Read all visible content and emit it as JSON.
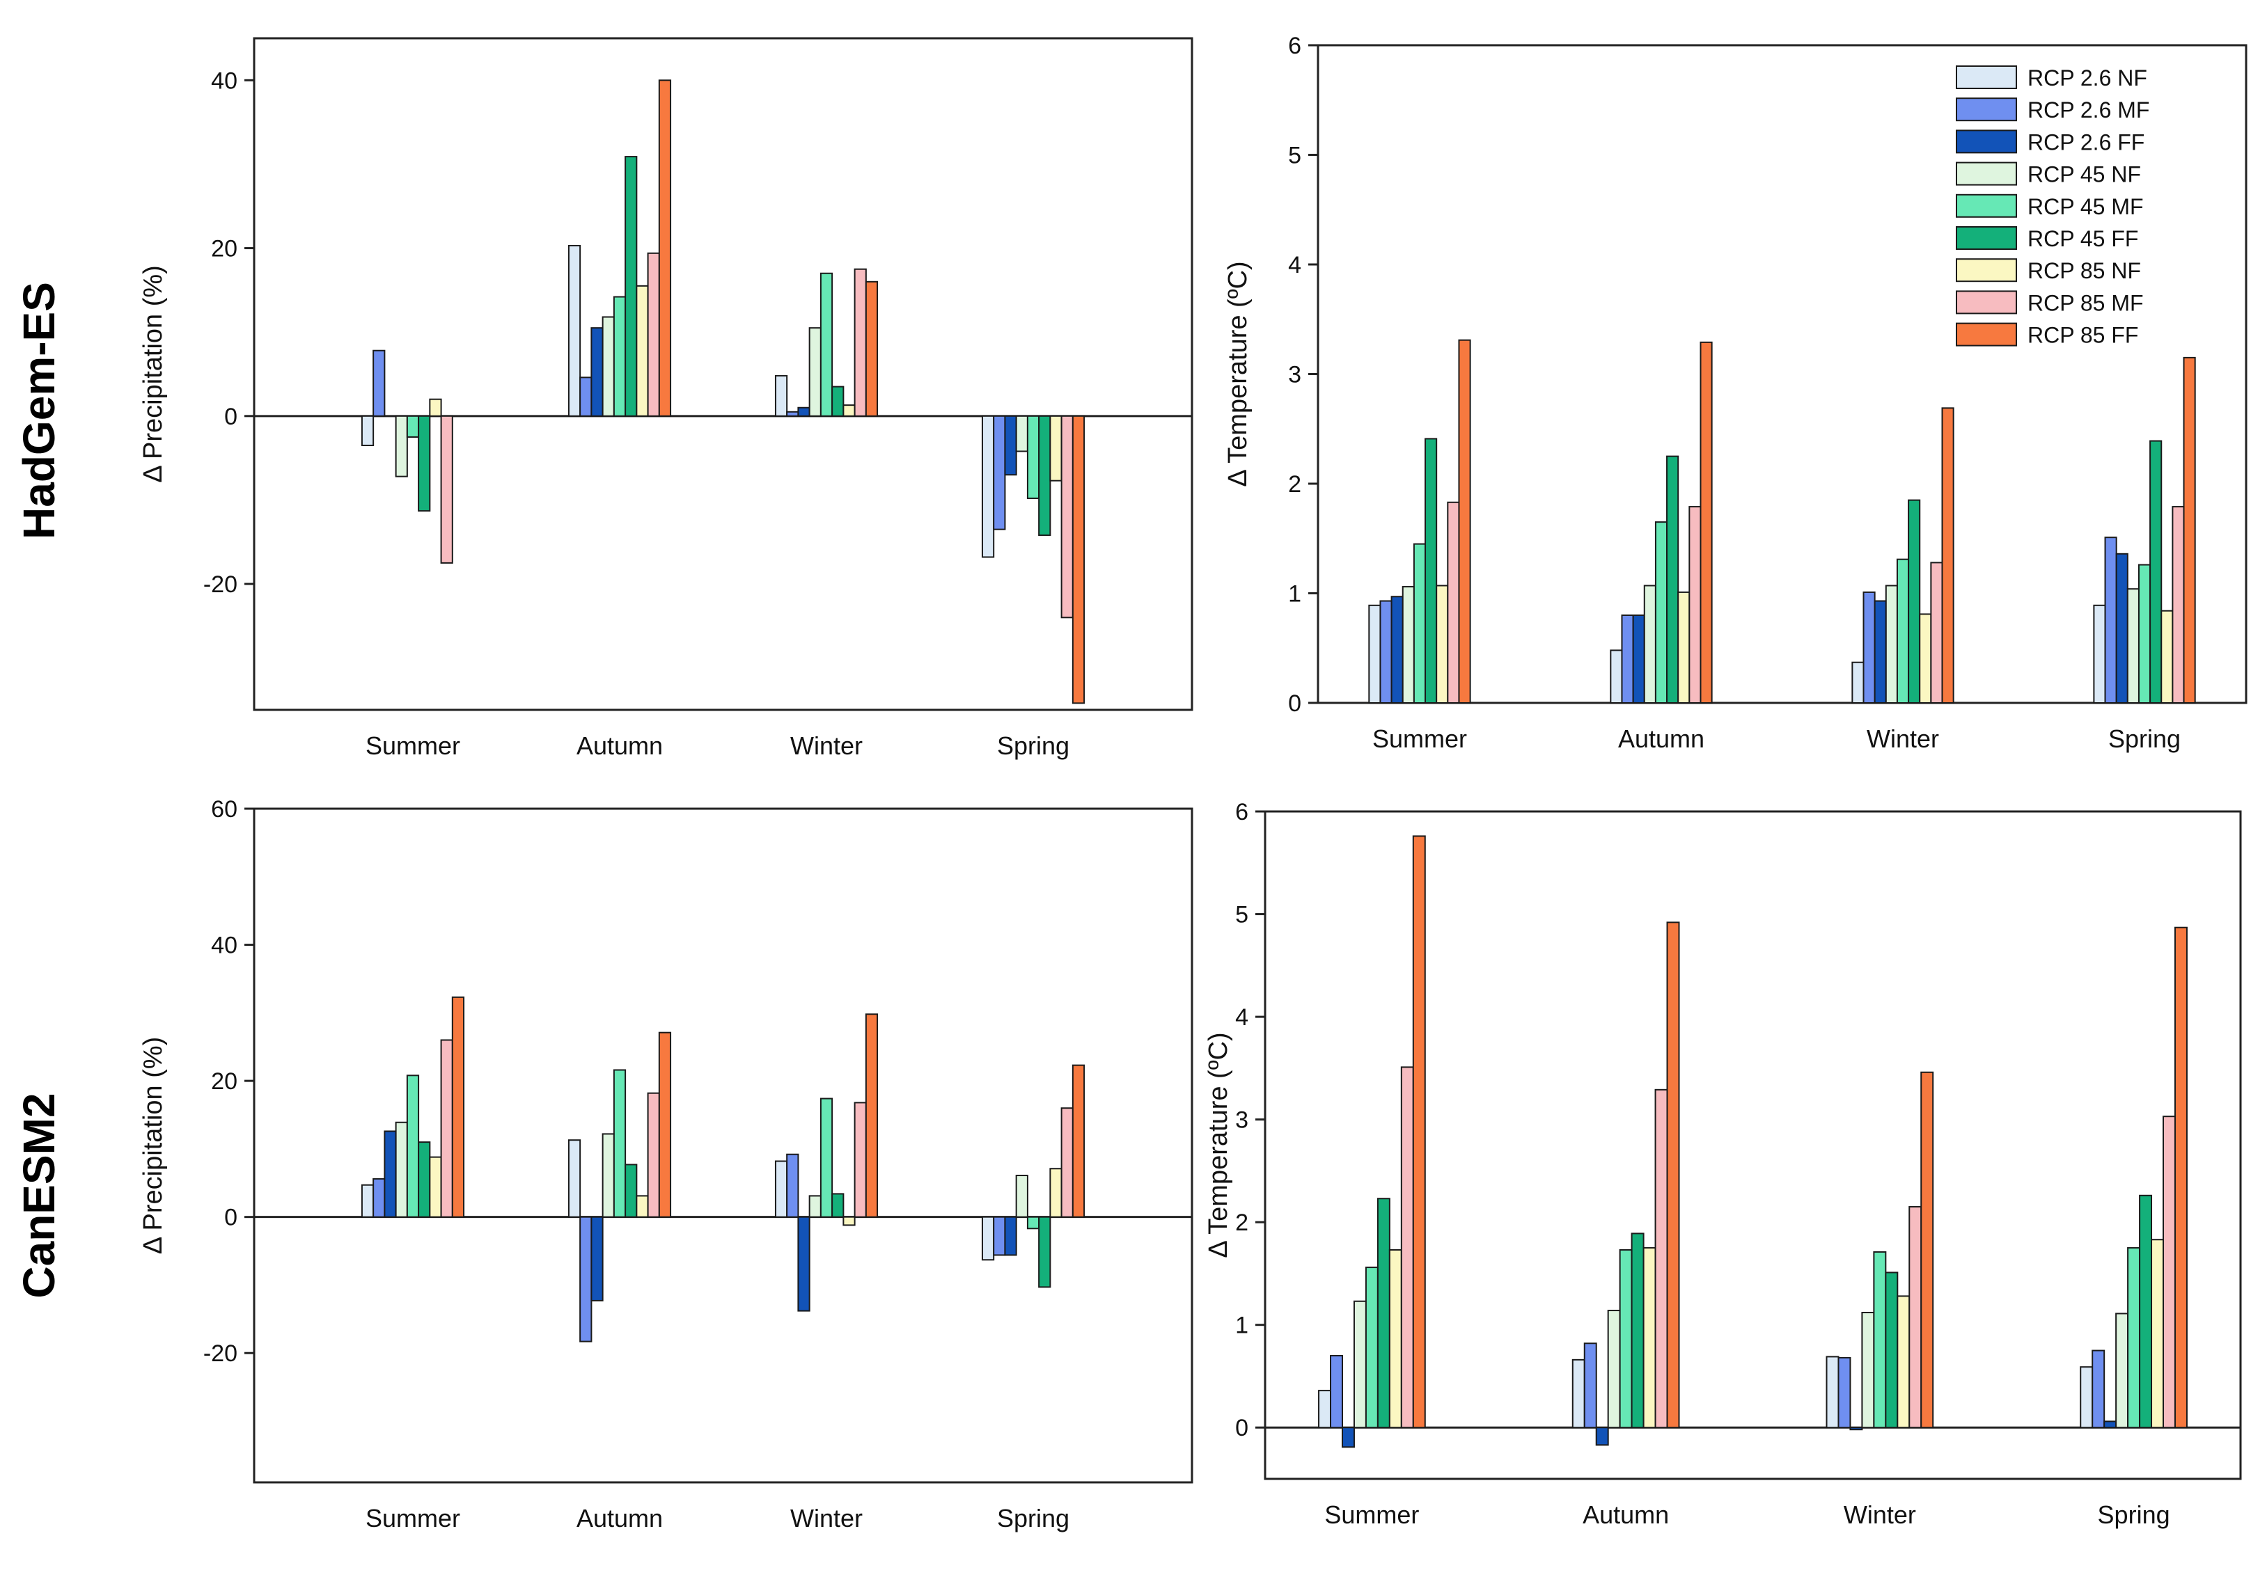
{
  "row_labels": [
    "HadGem-ES",
    "CanESM2"
  ],
  "legend": {
    "entries": [
      "RCP 2.6 NF",
      "RCP 2.6 MF",
      "RCP 2.6 FF",
      "RCP 45 NF",
      "RCP 45 MF",
      "RCP 45 FF",
      "RCP 85 NF",
      "RCP 85 MF",
      "RCP 85 FF"
    ],
    "placement": "top-right of top-right panel"
  },
  "series_colors": [
    "#dbe9f6",
    "#6f8ff0",
    "#1253b8",
    "#dff5df",
    "#66e8b5",
    "#14b07a",
    "#fbf7c2",
    "#f7bcc0",
    "#f7793f"
  ],
  "chart_data": [
    {
      "type": "bar",
      "row": "HadGem-ES",
      "categories": [
        "Summer",
        "Autumn",
        "Winter",
        "Spring"
      ],
      "ylabel": "Δ Precipitation (%)",
      "ylim": [
        -35,
        45
      ],
      "yticks": [
        -20,
        0,
        20,
        40
      ],
      "series": [
        {
          "name": "RCP 2.6 NF",
          "values": [
            -3.5,
            20.3,
            4.8,
            -16.8
          ]
        },
        {
          "name": "RCP 2.6 MF",
          "values": [
            7.8,
            4.6,
            0.5,
            -13.5
          ]
        },
        {
          "name": "RCP 2.6 FF",
          "values": [
            0,
            10.5,
            1.0,
            -7.0
          ]
        },
        {
          "name": "RCP 45 NF",
          "values": [
            -7.2,
            11.8,
            10.5,
            -4.2
          ]
        },
        {
          "name": "RCP 45 MF",
          "values": [
            -2.5,
            14.2,
            17.0,
            -9.8
          ]
        },
        {
          "name": "RCP 45 FF",
          "values": [
            -11.3,
            30.9,
            3.5,
            -14.2
          ]
        },
        {
          "name": "RCP 85 NF",
          "values": [
            2.0,
            15.5,
            1.3,
            -7.7
          ]
        },
        {
          "name": "RCP 85 MF",
          "values": [
            -17.5,
            19.4,
            17.5,
            -24.0
          ]
        },
        {
          "name": "RCP 85 FF",
          "values": [
            0,
            40.0,
            16.0,
            -34.2
          ]
        }
      ]
    },
    {
      "type": "bar",
      "row": "HadGem-ES",
      "categories": [
        "Summer",
        "Autumn",
        "Winter",
        "Spring"
      ],
      "ylabel": "Δ Temperature (ºC)",
      "ylim": [
        0,
        6
      ],
      "yticks": [
        0,
        1,
        2,
        3,
        4,
        5,
        6
      ],
      "series": [
        {
          "name": "RCP 2.6 NF",
          "values": [
            0.89,
            0.48,
            0.37,
            0.89
          ]
        },
        {
          "name": "RCP 2.6 MF",
          "values": [
            0.93,
            0.8,
            1.01,
            1.51
          ]
        },
        {
          "name": "RCP 2.6 FF",
          "values": [
            0.97,
            0.8,
            0.93,
            1.36
          ]
        },
        {
          "name": "RCP 45 NF",
          "values": [
            1.06,
            1.07,
            1.07,
            1.04
          ]
        },
        {
          "name": "RCP 45 MF",
          "values": [
            1.45,
            1.65,
            1.31,
            1.26
          ]
        },
        {
          "name": "RCP 45 FF",
          "values": [
            2.41,
            2.25,
            1.85,
            2.39
          ]
        },
        {
          "name": "RCP 85 NF",
          "values": [
            1.07,
            1.01,
            0.81,
            0.84
          ]
        },
        {
          "name": "RCP 85 MF",
          "values": [
            1.83,
            1.79,
            1.28,
            1.79
          ]
        },
        {
          "name": "RCP 85 FF",
          "values": [
            3.31,
            3.29,
            2.69,
            3.15
          ]
        }
      ]
    },
    {
      "type": "bar",
      "row": "CanESM2",
      "categories": [
        "Summer",
        "Autumn",
        "Winter",
        "Spring"
      ],
      "ylabel": "Δ Precipitation (%)",
      "ylim": [
        -39,
        60
      ],
      "yticks": [
        -20,
        0,
        20,
        40,
        60
      ],
      "series": [
        {
          "name": "RCP 2.6 NF",
          "values": [
            4.7,
            11.3,
            8.2,
            -6.3
          ]
        },
        {
          "name": "RCP 2.6 MF",
          "values": [
            5.6,
            -18.3,
            9.2,
            -5.6
          ]
        },
        {
          "name": "RCP 2.6 FF",
          "values": [
            12.6,
            -12.3,
            -13.8,
            -5.6
          ]
        },
        {
          "name": "RCP 45 NF",
          "values": [
            13.9,
            12.2,
            3.1,
            6.1
          ]
        },
        {
          "name": "RCP 45 MF",
          "values": [
            20.8,
            21.6,
            17.4,
            -1.7
          ]
        },
        {
          "name": "RCP 45 FF",
          "values": [
            11.0,
            7.7,
            3.4,
            -10.3
          ]
        },
        {
          "name": "RCP 85 NF",
          "values": [
            8.8,
            3.1,
            -1.2,
            7.1
          ]
        },
        {
          "name": "RCP 85 MF",
          "values": [
            26.0,
            18.2,
            16.8,
            16.0
          ]
        },
        {
          "name": "RCP 85 FF",
          "values": [
            32.3,
            27.1,
            29.8,
            22.3
          ]
        }
      ]
    },
    {
      "type": "bar",
      "row": "CanESM2",
      "categories": [
        "Summer",
        "Autumn",
        "Winter",
        "Spring"
      ],
      "ylabel": "Δ Temperature (ºC)",
      "ylim": [
        -0.5,
        6
      ],
      "yticks": [
        0,
        1,
        2,
        3,
        4,
        5,
        6
      ],
      "series": [
        {
          "name": "RCP 2.6 NF",
          "values": [
            0.36,
            0.66,
            0.69,
            0.59
          ]
        },
        {
          "name": "RCP 2.6 MF",
          "values": [
            0.7,
            0.82,
            0.68,
            0.75
          ]
        },
        {
          "name": "RCP 2.6 FF",
          "values": [
            -0.19,
            -0.17,
            -0.02,
            0.06
          ]
        },
        {
          "name": "RCP 45 NF",
          "values": [
            1.23,
            1.14,
            1.12,
            1.11
          ]
        },
        {
          "name": "RCP 45 MF",
          "values": [
            1.56,
            1.73,
            1.71,
            1.75
          ]
        },
        {
          "name": "RCP 45 FF",
          "values": [
            2.23,
            1.89,
            1.51,
            2.26
          ]
        },
        {
          "name": "RCP 85 NF",
          "values": [
            1.73,
            1.75,
            1.28,
            1.83
          ]
        },
        {
          "name": "RCP 85 MF",
          "values": [
            3.51,
            3.29,
            2.15,
            3.03
          ]
        },
        {
          "name": "RCP 85 FF",
          "values": [
            5.76,
            4.92,
            3.46,
            4.87
          ]
        }
      ]
    }
  ]
}
